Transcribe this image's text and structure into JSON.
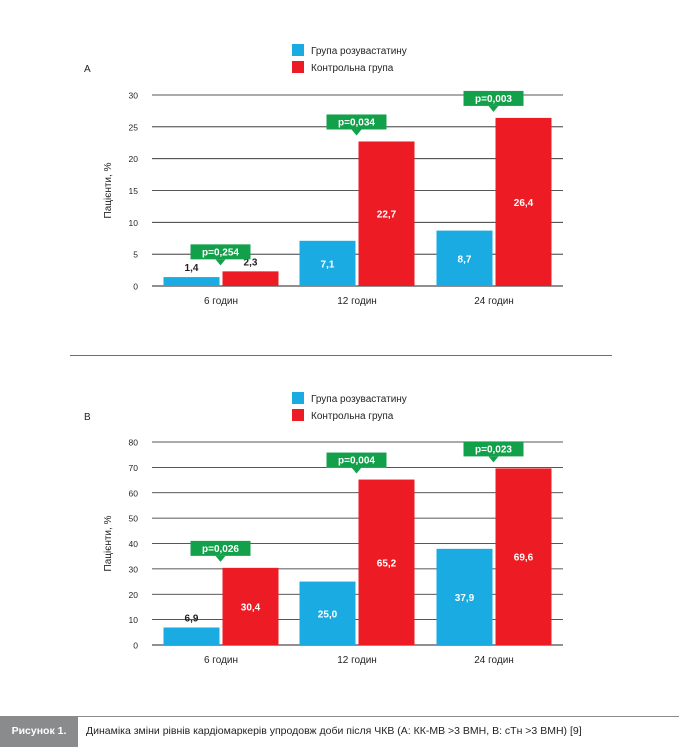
{
  "legend": {
    "series_labels": [
      "Група розувастатину",
      "Контрольна група"
    ]
  },
  "colors": {
    "series": [
      "#1aabe3",
      "#ed1c24"
    ],
    "pvalue_badge": "#13a04a",
    "axis": "#231f20",
    "grid": "#231f20"
  },
  "caption": {
    "tag": "Рисунок 1.",
    "text": "Динаміка зміни рівнів кардіомаркерів упродовж доби після ЧКВ (А: КК-МВ >3 ВМН, В: cТн >3 ВМН) [9]"
  },
  "chart_data": [
    {
      "panel_label": "А",
      "type": "bar",
      "ylabel": "Пацієнти, %",
      "ylim": [
        0,
        30
      ],
      "yticks": [
        0,
        5,
        10,
        15,
        20,
        25,
        30
      ],
      "grid": true,
      "legend_position": "top-center",
      "categories": [
        "6 годин",
        "12 годин",
        "24 годин"
      ],
      "series": [
        {
          "name": "Група розувастатину",
          "values": [
            1.4,
            7.1,
            8.7
          ],
          "value_labels": [
            "1,4",
            "7,1",
            "8,7"
          ]
        },
        {
          "name": "Контрольна група",
          "values": [
            2.3,
            22.7,
            26.4
          ],
          "value_labels": [
            "2,3",
            "22,7",
            "26,4"
          ]
        }
      ],
      "annotations": [
        "p=0,254",
        "p=0,034",
        "p=0,003"
      ]
    },
    {
      "panel_label": "В",
      "type": "bar",
      "ylabel": "Пацієнти, %",
      "ylim": [
        0,
        80
      ],
      "yticks": [
        0,
        10,
        20,
        30,
        40,
        50,
        60,
        70,
        80
      ],
      "grid": true,
      "legend_position": "top-center",
      "categories": [
        "6 годин",
        "12 годин",
        "24 годин"
      ],
      "series": [
        {
          "name": "Група розувастатину",
          "values": [
            6.9,
            25.0,
            37.9
          ],
          "value_labels": [
            "6,9",
            "25,0",
            "37,9"
          ]
        },
        {
          "name": "Контрольна група",
          "values": [
            30.4,
            65.2,
            69.6
          ],
          "value_labels": [
            "30,4",
            "65,2",
            "69,6"
          ]
        }
      ],
      "annotations": [
        "p=0,026",
        "p=0,004",
        "p=0,023"
      ]
    }
  ]
}
